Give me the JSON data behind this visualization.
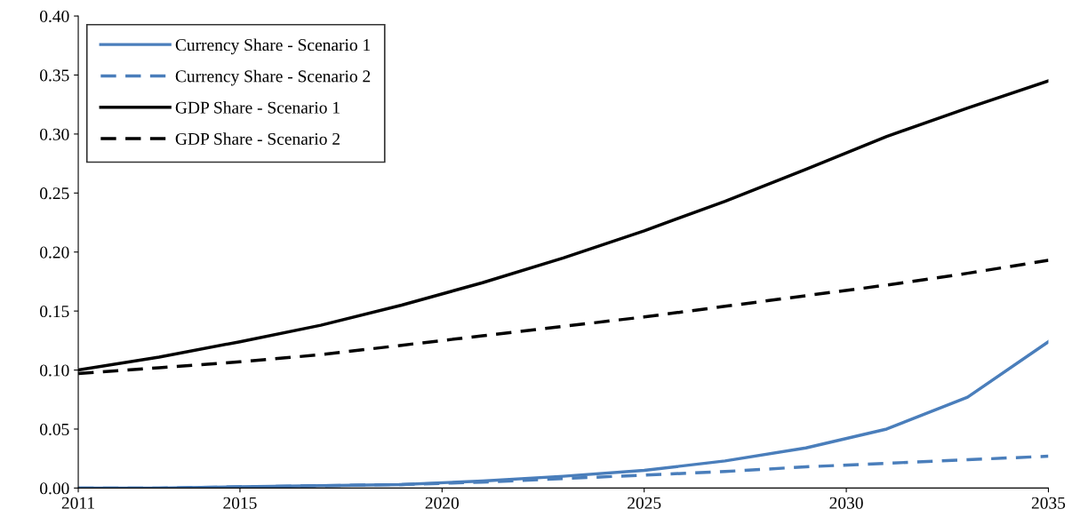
{
  "chart_data": {
    "type": "line",
    "x": [
      2011,
      2013,
      2015,
      2017,
      2019,
      2021,
      2023,
      2025,
      2027,
      2029,
      2031,
      2033,
      2035
    ],
    "series": [
      {
        "name": "Currency Share - Scenario 1",
        "color": "#4a7ebb",
        "line_style": "solid",
        "values": [
          0.0,
          0.0,
          0.001,
          0.002,
          0.003,
          0.006,
          0.01,
          0.015,
          0.023,
          0.034,
          0.05,
          0.077,
          0.124
        ]
      },
      {
        "name": "Currency Share - Scenario 2",
        "color": "#4a7ebb",
        "line_style": "dashed",
        "values": [
          0.0,
          0.0,
          0.001,
          0.002,
          0.003,
          0.005,
          0.008,
          0.011,
          0.014,
          0.018,
          0.021,
          0.024,
          0.027
        ]
      },
      {
        "name": "GDP Share - Scenario 1",
        "color": "#000000",
        "line_style": "solid",
        "values": [
          0.1,
          0.111,
          0.124,
          0.138,
          0.155,
          0.174,
          0.195,
          0.218,
          0.243,
          0.27,
          0.298,
          0.322,
          0.345
        ]
      },
      {
        "name": "GDP Share - Scenario 2",
        "color": "#000000",
        "line_style": "dashed",
        "values": [
          0.097,
          0.102,
          0.107,
          0.113,
          0.121,
          0.129,
          0.137,
          0.145,
          0.154,
          0.163,
          0.172,
          0.182,
          0.193
        ]
      }
    ],
    "xlim": [
      2011,
      2035
    ],
    "xticks": [
      2011,
      2015,
      2020,
      2025,
      2030,
      2035
    ],
    "ylim": [
      0,
      0.4
    ],
    "yticks": [
      {
        "value": 0,
        "label": "0.00"
      },
      {
        "value": 0.05,
        "label": "0.05"
      },
      {
        "value": 0.1,
        "label": "0.10"
      },
      {
        "value": 0.15,
        "label": "0.15"
      },
      {
        "value": 0.2,
        "label": "0.20"
      },
      {
        "value": 0.25,
        "label": "0.25"
      },
      {
        "value": 0.3,
        "label": "0.30"
      },
      {
        "value": 0.35,
        "label": "0.35"
      },
      {
        "value": 0.4,
        "label": "0.40"
      }
    ],
    "grid": false,
    "legend": "top left",
    "marker": "none"
  }
}
